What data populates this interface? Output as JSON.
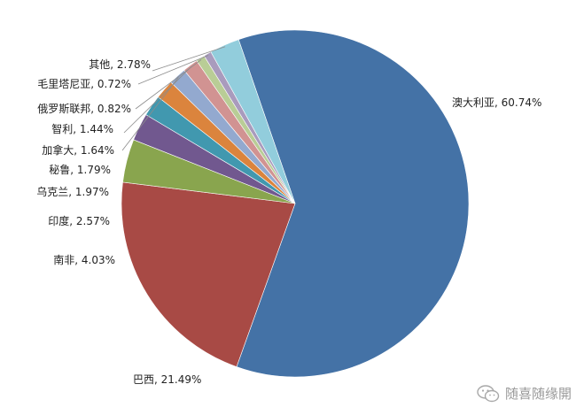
{
  "chart_data": {
    "type": "pie",
    "title": "",
    "slices": [
      {
        "label": "澳大利亚",
        "value": 60.74,
        "text": "澳大利亚, 60.74%",
        "color": "#4472A6"
      },
      {
        "label": "巴西",
        "value": 21.49,
        "text": "巴西, 21.49%",
        "color": "#A84A45"
      },
      {
        "label": "南非",
        "value": 4.03,
        "text": "南非, 4.03%",
        "color": "#89A54E"
      },
      {
        "label": "印度",
        "value": 2.57,
        "text": "印度, 2.57%",
        "color": "#71588F"
      },
      {
        "label": "乌克兰",
        "value": 1.97,
        "text": "乌克兰, 1.97%",
        "color": "#4198AF"
      },
      {
        "label": "秘鲁",
        "value": 1.79,
        "text": "秘鲁, 1.79%",
        "color": "#DB843D"
      },
      {
        "label": "加拿大",
        "value": 1.64,
        "text": "加拿大, 1.64%",
        "color": "#93A9CF"
      },
      {
        "label": "智利",
        "value": 1.44,
        "text": "智利, 1.44%",
        "color": "#D19392"
      },
      {
        "label": "俄罗斯联邦",
        "value": 0.82,
        "text": "俄罗斯联邦, 0.82%",
        "color": "#B9CD96"
      },
      {
        "label": "毛里塔尼亚",
        "value": 0.72,
        "text": "毛里塔尼亚, 0.72%",
        "color": "#A99BBD"
      },
      {
        "label": "其他",
        "value": 2.78,
        "text": "其他, 2.78%",
        "color": "#92CDDC"
      }
    ]
  },
  "watermark": {
    "text": "随喜随缘開",
    "icon": "wechat-icon"
  }
}
